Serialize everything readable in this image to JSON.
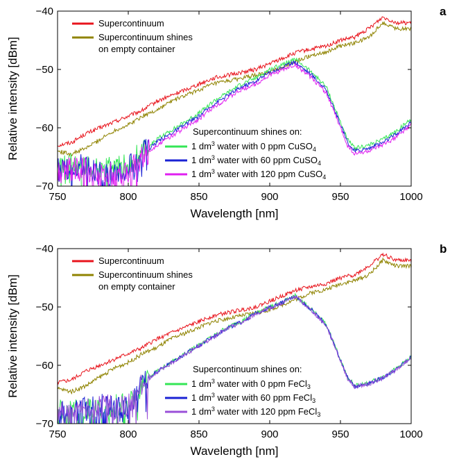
{
  "chart_data": [
    {
      "type": "line",
      "panel": "a",
      "xlabel": "Wavelength [nm]",
      "ylabel": "Relative intensity [dBm]",
      "xlim": [
        750,
        1000
      ],
      "ylim": [
        -70,
        -40
      ],
      "xticks": [
        "750",
        "800",
        "850",
        "900",
        "950",
        "1000"
      ],
      "yticks": [
        "−40",
        "−50",
        "−60",
        "−70"
      ],
      "grid": false,
      "legend_top": [
        "Supercontinuum",
        "Supercontinuum shines",
        "on empty container"
      ],
      "legend_bottom_title": "Supercontinuum shines on:",
      "legend_bottom": [
        {
          "pre": "1 dm",
          "sup": "3",
          "mid": " water with 0 ppm CuSO",
          "sub": "4"
        },
        {
          "pre": "1 dm",
          "sup": "3",
          "mid": " water with 60 ppm CuSO",
          "sub": "4"
        },
        {
          "pre": "1 dm",
          "sup": "3",
          "mid": " water with 120 ppm CuSO",
          "sub": "4"
        }
      ],
      "series": [
        {
          "name": "Supercontinuum",
          "color": "#e8141c",
          "x": [
            750,
            760,
            770,
            780,
            790,
            800,
            810,
            820,
            830,
            840,
            850,
            860,
            870,
            880,
            890,
            900,
            910,
            920,
            930,
            940,
            950,
            960,
            970,
            980,
            990,
            1000
          ],
          "y": [
            -63,
            -62.5,
            -61,
            -60,
            -59,
            -58,
            -57,
            -55.5,
            -54.5,
            -53.5,
            -52.5,
            -51.5,
            -51,
            -50.5,
            -50,
            -49,
            -48,
            -47,
            -46.5,
            -46,
            -45,
            -44.5,
            -43,
            -41,
            -42,
            -42
          ]
        },
        {
          "name": "Supercontinuum shines on empty container",
          "color": "#8f8300",
          "x": [
            750,
            760,
            770,
            780,
            790,
            800,
            810,
            820,
            830,
            840,
            850,
            860,
            870,
            880,
            890,
            900,
            910,
            920,
            930,
            940,
            950,
            960,
            970,
            980,
            990,
            1000
          ],
          "y": [
            -64,
            -64.5,
            -63.5,
            -62,
            -60.5,
            -59.5,
            -58,
            -57,
            -55.5,
            -54.5,
            -53.5,
            -52.5,
            -52,
            -51.5,
            -51,
            -50.5,
            -49.5,
            -48.5,
            -47.5,
            -47,
            -46,
            -45.5,
            -44.5,
            -42,
            -43,
            -43
          ]
        },
        {
          "name": "1 dm3 water with 0 ppm CuSO4",
          "color": "#33e655",
          "x": [
            750,
            760,
            770,
            780,
            790,
            800,
            810,
            820,
            830,
            840,
            850,
            860,
            870,
            880,
            890,
            900,
            910,
            918,
            930,
            940,
            945,
            950,
            955,
            960,
            970,
            980,
            990,
            1000
          ],
          "y": [
            -67,
            -66,
            -66,
            -67.5,
            -67,
            -66.5,
            -64,
            -62,
            -60.5,
            -59,
            -57.5,
            -55.5,
            -54,
            -52.5,
            -51.5,
            -50,
            -49,
            -48.2,
            -50.5,
            -53,
            -56,
            -59,
            -62,
            -63.5,
            -63,
            -62,
            -60.5,
            -58.5
          ]
        },
        {
          "name": "1 dm3 water with 60 ppm CuSO4",
          "color": "#1a22d4",
          "x": [
            750,
            760,
            770,
            780,
            790,
            800,
            810,
            820,
            830,
            840,
            850,
            860,
            870,
            880,
            890,
            900,
            910,
            918,
            930,
            940,
            945,
            950,
            955,
            960,
            970,
            980,
            990,
            1000
          ],
          "y": [
            -67.5,
            -66.5,
            -66.5,
            -68,
            -67.5,
            -67,
            -64.5,
            -62.5,
            -61,
            -59.5,
            -58,
            -56,
            -54.5,
            -53,
            -52,
            -50.5,
            -49.5,
            -48.7,
            -51,
            -53.5,
            -56.5,
            -59.5,
            -62.5,
            -64,
            -63.5,
            -62.5,
            -61,
            -59
          ]
        },
        {
          "name": "1 dm3 water with 120 ppm CuSO4",
          "color": "#e01ff0",
          "x": [
            750,
            760,
            770,
            780,
            790,
            800,
            810,
            820,
            830,
            840,
            850,
            860,
            870,
            880,
            890,
            900,
            910,
            918,
            930,
            940,
            945,
            950,
            955,
            960,
            970,
            980,
            990,
            1000
          ],
          "y": [
            -68,
            -67,
            -67,
            -68.5,
            -68,
            -67.5,
            -65,
            -63,
            -61.5,
            -60,
            -58.5,
            -56.5,
            -55,
            -53.5,
            -52.5,
            -51,
            -50,
            -49.2,
            -51.5,
            -54,
            -57,
            -60,
            -63,
            -64.5,
            -64,
            -63,
            -61.5,
            -59.5
          ]
        }
      ]
    },
    {
      "type": "line",
      "panel": "b",
      "xlabel": "Wavelength [nm]",
      "ylabel": "Relative intensity [dBm]",
      "xlim": [
        750,
        1000
      ],
      "ylim": [
        -70,
        -40
      ],
      "xticks": [
        "750",
        "800",
        "850",
        "900",
        "950",
        "1000"
      ],
      "yticks": [
        "−40",
        "−50",
        "−60",
        "−70"
      ],
      "grid": false,
      "legend_top": [
        "Supercontinuum",
        "Supercontinuum shines",
        "on empty container"
      ],
      "legend_bottom_title": "Supercontinuum shines on:",
      "legend_bottom": [
        {
          "pre": "1 dm",
          "sup": "3",
          "mid": " water with 0 ppm FeCl",
          "sub": "3"
        },
        {
          "pre": "1 dm",
          "sup": "3",
          "mid": " water with 60 ppm FeCl",
          "sub": "3"
        },
        {
          "pre": "1 dm",
          "sup": "3",
          "mid": " water with 120 ppm FeCl",
          "sub": "3"
        }
      ],
      "series": [
        {
          "name": "Supercontinuum",
          "color": "#e8141c",
          "x": [
            750,
            760,
            770,
            780,
            790,
            800,
            810,
            820,
            830,
            840,
            850,
            860,
            870,
            880,
            890,
            900,
            910,
            920,
            930,
            940,
            950,
            960,
            970,
            980,
            990,
            1000
          ],
          "y": [
            -63,
            -62.5,
            -61,
            -60,
            -59,
            -58,
            -57,
            -55.5,
            -54.5,
            -53.5,
            -52.5,
            -51.5,
            -51,
            -50.5,
            -50,
            -49,
            -48,
            -47,
            -46.5,
            -46,
            -45,
            -44.5,
            -43,
            -41,
            -42,
            -42
          ]
        },
        {
          "name": "Supercontinuum shines on empty container",
          "color": "#8f8300",
          "x": [
            750,
            760,
            770,
            780,
            790,
            800,
            810,
            820,
            830,
            840,
            850,
            860,
            870,
            880,
            890,
            900,
            910,
            920,
            930,
            940,
            950,
            960,
            970,
            980,
            990,
            1000
          ],
          "y": [
            -64,
            -64.5,
            -63.5,
            -62,
            -60.5,
            -59.5,
            -58,
            -57,
            -55.5,
            -54.5,
            -53.5,
            -52.5,
            -52,
            -51.5,
            -51,
            -50.5,
            -49.5,
            -48.5,
            -47.5,
            -47,
            -46,
            -45.5,
            -44.5,
            -42,
            -43,
            -43
          ]
        },
        {
          "name": "1 dm3 water with 0 ppm FeCl3",
          "color": "#33e655",
          "x": [
            750,
            760,
            770,
            780,
            790,
            800,
            810,
            820,
            830,
            840,
            850,
            860,
            870,
            880,
            890,
            900,
            910,
            918,
            930,
            940,
            945,
            950,
            955,
            960,
            970,
            980,
            990,
            1000
          ],
          "y": [
            -68,
            -68,
            -67.5,
            -67,
            -67,
            -67,
            -63,
            -61,
            -59.5,
            -58,
            -56.5,
            -55,
            -53.5,
            -52.5,
            -51,
            -50,
            -49,
            -48,
            -50.5,
            -53,
            -56,
            -59,
            -62,
            -63.5,
            -63,
            -62,
            -60.5,
            -58.5
          ]
        },
        {
          "name": "1 dm3 water with 60 ppm FeCl3",
          "color": "#1a22d4",
          "x": [
            750,
            760,
            770,
            780,
            790,
            800,
            810,
            820,
            830,
            840,
            850,
            860,
            870,
            880,
            890,
            900,
            910,
            918,
            930,
            940,
            945,
            950,
            955,
            960,
            970,
            980,
            990,
            1000
          ],
          "y": [
            -68.1,
            -68.1,
            -67.6,
            -67.1,
            -67.1,
            -67.1,
            -63.1,
            -61.1,
            -59.6,
            -58.1,
            -56.6,
            -55.1,
            -53.6,
            -52.6,
            -51.1,
            -50.1,
            -49.1,
            -48.1,
            -50.6,
            -53.1,
            -56.1,
            -59.1,
            -62.1,
            -63.6,
            -63.1,
            -62.1,
            -60.6,
            -58.6
          ]
        },
        {
          "name": "1 dm3 water with 120 ppm FeCl3",
          "color": "#9a4fd8",
          "x": [
            750,
            760,
            770,
            780,
            790,
            800,
            810,
            820,
            830,
            840,
            850,
            860,
            870,
            880,
            890,
            900,
            910,
            918,
            930,
            940,
            945,
            950,
            955,
            960,
            970,
            980,
            990,
            1000
          ],
          "y": [
            -68.2,
            -68.2,
            -67.7,
            -67.2,
            -67.2,
            -67.2,
            -63.2,
            -61.2,
            -59.7,
            -58.2,
            -56.7,
            -55.2,
            -53.7,
            -52.7,
            -51.2,
            -50.2,
            -49.2,
            -48.2,
            -50.7,
            -53.2,
            -56.2,
            -59.2,
            -62.2,
            -63.7,
            -63.2,
            -62.2,
            -60.7,
            -58.7
          ]
        }
      ]
    }
  ]
}
